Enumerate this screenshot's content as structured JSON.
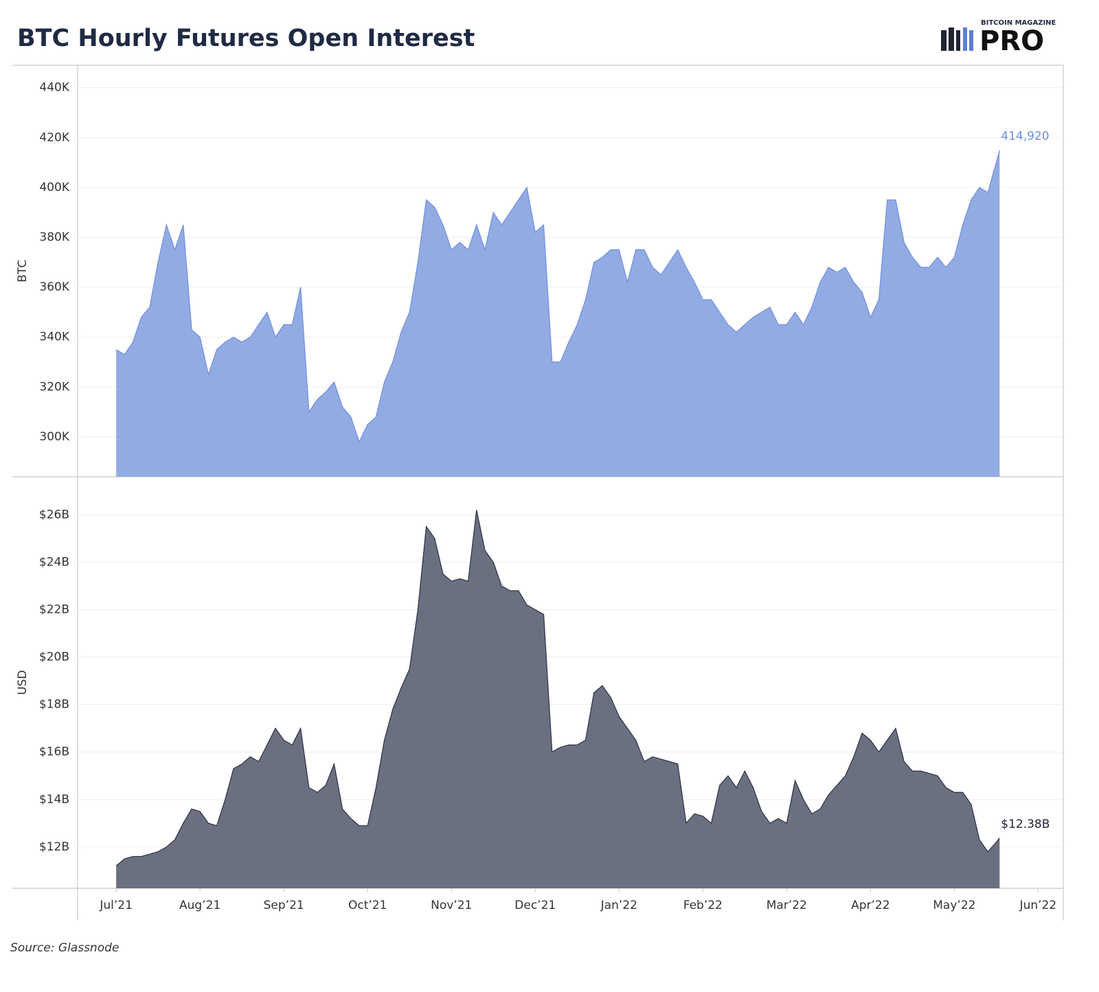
{
  "title": "BTC Hourly Futures Open Interest",
  "logo": {
    "small": "BITCOIN MAGAZINE",
    "big": "PRO"
  },
  "source": "Source: Glassnode",
  "chart_data": [
    {
      "type": "area",
      "ylabel": "BTC",
      "grid": true,
      "color": "#93abe3",
      "line_color": "#6d8ee0",
      "label_color": "#6d8ee0",
      "xlim": [
        -0.46,
        11.3
      ],
      "ylim": [
        284000,
        449000
      ],
      "yticks": [
        {
          "value": 300000,
          "label": "300K"
        },
        {
          "value": 320000,
          "label": "320K"
        },
        {
          "value": 340000,
          "label": "340K"
        },
        {
          "value": 360000,
          "label": "360K"
        },
        {
          "value": 380000,
          "label": "380K"
        },
        {
          "value": 400000,
          "label": "400K"
        },
        {
          "value": 420000,
          "label": "420K"
        },
        {
          "value": 440000,
          "label": "440K"
        }
      ],
      "x": [
        0,
        0.1,
        0.2,
        0.3,
        0.4,
        0.5,
        0.6,
        0.7,
        0.8,
        0.9,
        1,
        1.1,
        1.2,
        1.3,
        1.4,
        1.5,
        1.6,
        1.7,
        1.8,
        1.9,
        2,
        2.1,
        2.2,
        2.3,
        2.4,
        2.5,
        2.6,
        2.7,
        2.8,
        2.9,
        3,
        3.1,
        3.2,
        3.3,
        3.4,
        3.5,
        3.6,
        3.7,
        3.8,
        3.9,
        4,
        4.1,
        4.2,
        4.3,
        4.4,
        4.5,
        4.6,
        4.7,
        4.8,
        4.9,
        5,
        5.1,
        5.2,
        5.3,
        5.4,
        5.5,
        5.6,
        5.7,
        5.8,
        5.9,
        6,
        6.1,
        6.2,
        6.3,
        6.4,
        6.5,
        6.6,
        6.7,
        6.8,
        6.9,
        7,
        7.1,
        7.2,
        7.3,
        7.4,
        7.5,
        7.6,
        7.7,
        7.8,
        7.9,
        8,
        8.1,
        8.2,
        8.3,
        8.4,
        8.5,
        8.6,
        8.7,
        8.8,
        8.9,
        9,
        9.1,
        9.2,
        9.3,
        9.4,
        9.5,
        9.6,
        9.7,
        9.8,
        9.9,
        10,
        10.1,
        10.2,
        10.3,
        10.4,
        10.5,
        10.54
      ],
      "values": [
        335000,
        333000,
        338000,
        348000,
        352000,
        370000,
        385000,
        375000,
        385000,
        343000,
        340000,
        325000,
        335000,
        338000,
        340000,
        338000,
        340000,
        345000,
        350000,
        340000,
        345000,
        345000,
        360000,
        310000,
        315000,
        318000,
        322000,
        312000,
        308000,
        298000,
        305000,
        308000,
        322000,
        330000,
        342000,
        350000,
        370000,
        395000,
        392000,
        385000,
        375000,
        378000,
        375000,
        385000,
        375000,
        390000,
        385000,
        390000,
        395000,
        400000,
        382000,
        385000,
        330000,
        330000,
        338000,
        345000,
        355000,
        370000,
        372000,
        375000,
        375000,
        362000,
        375000,
        375000,
        368000,
        365000,
        370000,
        375000,
        368000,
        362000,
        355000,
        355000,
        350000,
        345000,
        342000,
        345000,
        348000,
        350000,
        352000,
        345000,
        345000,
        350000,
        345000,
        352000,
        362000,
        368000,
        366000,
        368000,
        362000,
        358000,
        348000,
        355000,
        395000,
        395000,
        378000,
        372000,
        368000,
        368000,
        372000,
        368000,
        372000,
        385000,
        395000,
        400000,
        398000,
        410000,
        414920
      ],
      "last_label": "414,920"
    },
    {
      "type": "area",
      "ylabel": "USD",
      "grid": true,
      "color": "#6b7080",
      "line_color": "#2a2f45",
      "label_color": "#1f2433",
      "xlim": [
        -0.46,
        11.3
      ],
      "xticks": [
        {
          "value": 0,
          "label": "Jul’21"
        },
        {
          "value": 1,
          "label": "Aug’21"
        },
        {
          "value": 2,
          "label": "Sep’21"
        },
        {
          "value": 3,
          "label": "Oct’21"
        },
        {
          "value": 4,
          "label": "Nov’21"
        },
        {
          "value": 5,
          "label": "Dec’21"
        },
        {
          "value": 6,
          "label": "Jan’22"
        },
        {
          "value": 7,
          "label": "Feb’22"
        },
        {
          "value": 8,
          "label": "Mar’22"
        },
        {
          "value": 9,
          "label": "Apr’22"
        },
        {
          "value": 10,
          "label": "May’22"
        },
        {
          "value": 11,
          "label": "Jun’22"
        }
      ],
      "ylim": [
        10260000000,
        27600000000
      ],
      "yticks": [
        {
          "value": 12000000000,
          "label": "$12B"
        },
        {
          "value": 14000000000,
          "label": "$14B"
        },
        {
          "value": 16000000000,
          "label": "$16B"
        },
        {
          "value": 18000000000,
          "label": "$18B"
        },
        {
          "value": 20000000000,
          "label": "$20B"
        },
        {
          "value": 22000000000,
          "label": "$22B"
        },
        {
          "value": 24000000000,
          "label": "$24B"
        },
        {
          "value": 26000000000,
          "label": "$26B"
        }
      ],
      "x": [
        0,
        0.1,
        0.2,
        0.3,
        0.4,
        0.5,
        0.6,
        0.7,
        0.8,
        0.9,
        1,
        1.1,
        1.2,
        1.3,
        1.4,
        1.5,
        1.6,
        1.7,
        1.8,
        1.9,
        2,
        2.1,
        2.2,
        2.3,
        2.4,
        2.5,
        2.6,
        2.7,
        2.8,
        2.9,
        3,
        3.1,
        3.2,
        3.3,
        3.4,
        3.5,
        3.6,
        3.7,
        3.8,
        3.9,
        4,
        4.1,
        4.2,
        4.3,
        4.4,
        4.5,
        4.6,
        4.7,
        4.8,
        4.9,
        5,
        5.1,
        5.2,
        5.3,
        5.4,
        5.5,
        5.6,
        5.7,
        5.8,
        5.9,
        6,
        6.1,
        6.2,
        6.3,
        6.4,
        6.5,
        6.6,
        6.7,
        6.8,
        6.9,
        7,
        7.1,
        7.2,
        7.3,
        7.4,
        7.5,
        7.6,
        7.7,
        7.8,
        7.9,
        8,
        8.1,
        8.2,
        8.3,
        8.4,
        8.5,
        8.6,
        8.7,
        8.8,
        8.9,
        9,
        9.1,
        9.2,
        9.3,
        9.4,
        9.5,
        9.6,
        9.7,
        9.8,
        9.9,
        10,
        10.1,
        10.2,
        10.3,
        10.4,
        10.5,
        10.54
      ],
      "values": [
        11200000000.0,
        11500000000.0,
        11600000000.0,
        11600000000.0,
        11700000000.0,
        11800000000.0,
        12000000000.0,
        12300000000.0,
        13000000000.0,
        13600000000.0,
        13500000000.0,
        13000000000.0,
        12900000000.0,
        14000000000.0,
        15300000000.0,
        15500000000.0,
        15800000000.0,
        15600000000.0,
        16300000000.0,
        17000000000.0,
        16500000000.0,
        16300000000.0,
        17000000000.0,
        14500000000.0,
        14300000000.0,
        14600000000.0,
        15500000000.0,
        13600000000.0,
        13200000000.0,
        12900000000.0,
        12900000000.0,
        14500000000.0,
        16500000000.0,
        17800000000.0,
        18700000000.0,
        19500000000.0,
        22000000000.0,
        25500000000.0,
        25000000000.0,
        23500000000.0,
        23200000000.0,
        23300000000.0,
        23200000000.0,
        26200000000.0,
        24500000000.0,
        24000000000.0,
        23000000000.0,
        22800000000.0,
        22800000000.0,
        22200000000.0,
        22000000000.0,
        21800000000.0,
        16000000000.0,
        16200000000.0,
        16300000000.0,
        16300000000.0,
        16500000000.0,
        18500000000.0,
        18800000000.0,
        18300000000.0,
        17500000000.0,
        17000000000.0,
        16500000000.0,
        15600000000.0,
        15800000000.0,
        15700000000.0,
        15600000000.0,
        15500000000.0,
        13000000000.0,
        13400000000.0,
        13300000000.0,
        13000000000.0,
        14600000000.0,
        15000000000.0,
        14500000000.0,
        15200000000.0,
        14500000000.0,
        13500000000.0,
        13000000000.0,
        13200000000.0,
        13000000000.0,
        14800000000.0,
        14000000000.0,
        13400000000.0,
        13600000000.0,
        14200000000.0,
        14600000000.0,
        15000000000.0,
        15800000000.0,
        16800000000.0,
        16500000000.0,
        16000000000.0,
        16500000000.0,
        17000000000.0,
        15600000000.0,
        15200000000.0,
        15200000000.0,
        15100000000.0,
        15000000000.0,
        14500000000.0,
        14300000000.0,
        14300000000.0,
        13800000000.0,
        12300000000.0,
        11800000000.0,
        12200000000.0,
        12380000000.0
      ],
      "last_label": "$12.38B"
    }
  ]
}
